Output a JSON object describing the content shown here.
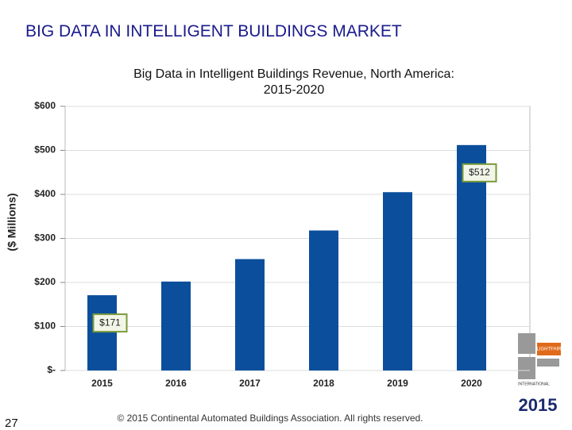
{
  "slide_title": "BIG DATA IN INTELLIGENT BUILDINGS MARKET",
  "page_number": "27",
  "footer": "© 2015 Continental Automated Buildings Association. All rights reserved.",
  "logo": {
    "name": "LIGHTFAIR",
    "subtitle": "INTERNATIONAL",
    "year": "2015"
  },
  "chart_data": {
    "type": "bar",
    "title": "Big Data in Intelligent Buildings Revenue, North America: 2015-2020",
    "y_label": "($ Millions)",
    "categories": [
      "2015",
      "2016",
      "2017",
      "2018",
      "2019",
      "2020"
    ],
    "values": [
      171,
      202,
      253,
      318,
      405,
      512
    ],
    "value_labels": [
      "$171",
      null,
      null,
      null,
      null,
      "$512"
    ],
    "color": "#0b4f9c",
    "ylim": [
      0,
      600
    ],
    "yticks": [
      {
        "value": 0,
        "label": "$-"
      },
      {
        "value": 100,
        "label": "$100"
      },
      {
        "value": 200,
        "label": "$200"
      },
      {
        "value": 300,
        "label": "$300"
      },
      {
        "value": 400,
        "label": "$400"
      },
      {
        "value": 500,
        "label": "$500"
      },
      {
        "value": 600,
        "label": "$600"
      }
    ],
    "grid": true
  }
}
